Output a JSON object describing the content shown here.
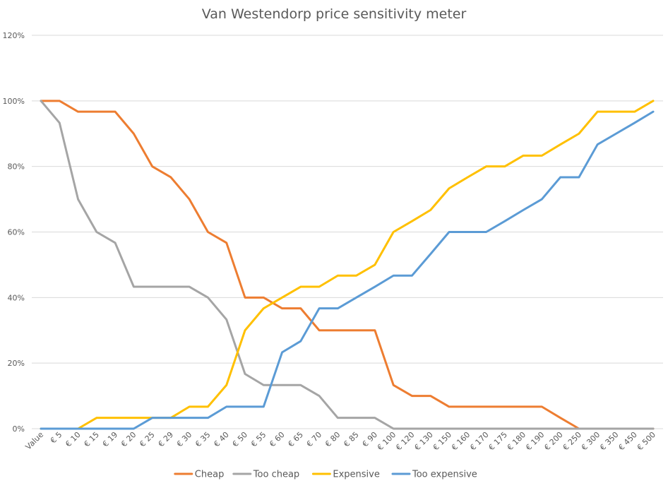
{
  "chart_data": {
    "type": "line",
    "title": "Van Westendorp price sensitivity meter",
    "xlabel": "",
    "ylabel": "",
    "ylim": [
      0,
      120
    ],
    "yticks": [
      "0%",
      "20%",
      "40%",
      "60%",
      "80%",
      "100%",
      "120%"
    ],
    "yticks_values": [
      0,
      20,
      40,
      60,
      80,
      100,
      120
    ],
    "grid": true,
    "legend_position": "bottom",
    "categories": [
      "Value",
      "€ 5",
      "€ 10",
      "€ 15",
      "€ 19",
      "€ 20",
      "€ 25",
      "€ 29",
      "€ 30",
      "€ 35",
      "€ 40",
      "€ 50",
      "€ 55",
      "€ 60",
      "€ 65",
      "€ 70",
      "€ 80",
      "€ 85",
      "€ 90",
      "€ 100",
      "€ 120",
      "€ 130",
      "€ 150",
      "€ 160",
      "€ 170",
      "€ 175",
      "€ 180",
      "€ 190",
      "€ 200",
      "€ 250",
      "€ 300",
      "€ 350",
      "€ 450",
      "€ 500"
    ],
    "series": [
      {
        "name": "Cheap",
        "color": "#ED7D31",
        "values": [
          100,
          100,
          96.7,
          96.7,
          96.7,
          90,
          80,
          76.7,
          70,
          60,
          56.7,
          40,
          40,
          36.7,
          36.7,
          30,
          30,
          30,
          30,
          13.3,
          10,
          10,
          6.7,
          6.7,
          6.7,
          6.7,
          6.7,
          6.7,
          3.3,
          0,
          0,
          0,
          0,
          0
        ]
      },
      {
        "name": "Too cheap",
        "color": "#A5A5A5",
        "values": [
          100,
          93.3,
          70,
          60,
          56.7,
          43.3,
          43.3,
          43.3,
          43.3,
          40,
          33.3,
          16.7,
          13.3,
          13.3,
          13.3,
          10,
          3.3,
          3.3,
          3.3,
          0,
          0,
          0,
          0,
          0,
          0,
          0,
          0,
          0,
          0,
          0,
          0,
          0,
          0,
          0
        ]
      },
      {
        "name": "Expensive",
        "color": "#FFC000",
        "values": [
          0,
          0,
          0,
          3.3,
          3.3,
          3.3,
          3.3,
          3.3,
          6.7,
          6.7,
          13.3,
          30,
          36.7,
          40,
          43.3,
          43.3,
          46.7,
          46.7,
          50,
          60,
          63.3,
          66.7,
          73.3,
          76.7,
          80,
          80,
          83.3,
          83.3,
          86.7,
          90,
          96.7,
          96.7,
          96.7,
          100
        ]
      },
      {
        "name": "Too expensive",
        "color": "#5B9BD5",
        "values": [
          0,
          0,
          0,
          0,
          0,
          0,
          3.3,
          3.3,
          3.3,
          3.3,
          6.7,
          6.7,
          6.7,
          23.3,
          26.7,
          36.7,
          36.7,
          40,
          43.3,
          46.7,
          46.7,
          53.3,
          60,
          60,
          60,
          63.3,
          66.7,
          70,
          76.7,
          76.7,
          86.7,
          90,
          93.3,
          96.7
        ]
      }
    ]
  }
}
